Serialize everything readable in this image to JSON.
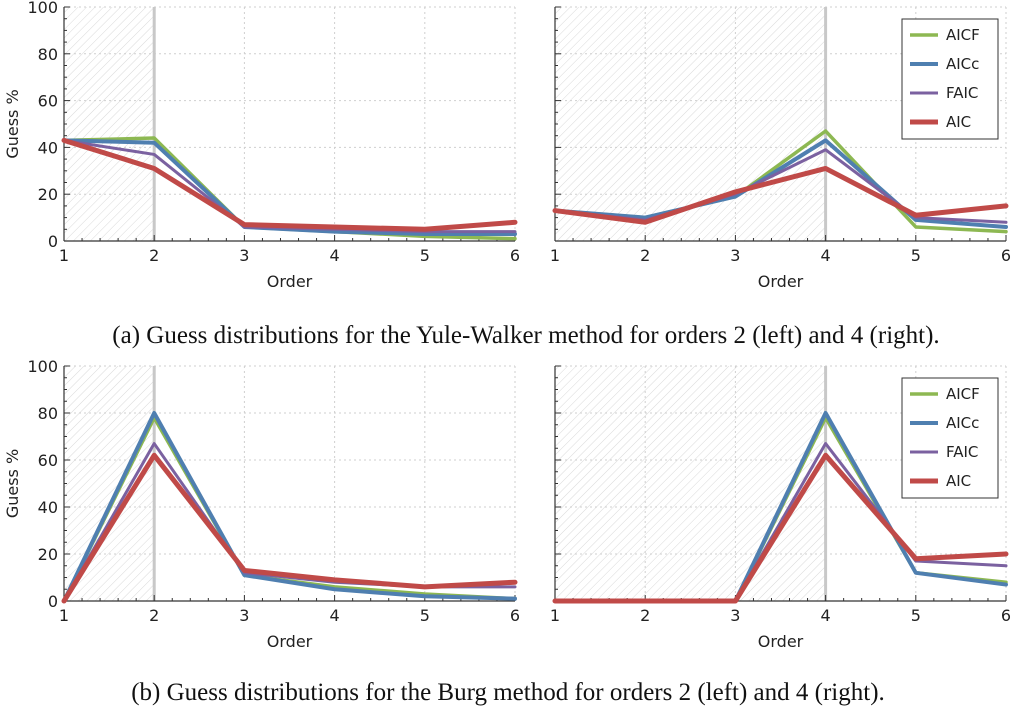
{
  "captions": {
    "a": "(a) Guess distributions for the Yule-Walker method for orders 2 (left) and 4 (right).",
    "b": "(b) Guess distributions for the Burg method for orders 2 (left) and 4 (right)."
  },
  "colors": {
    "AICF": "#8db852",
    "AICc": "#4f7fb0",
    "FAIC": "#7b61a0",
    "AIC": "#c04a48",
    "marker": "#c8c8c8",
    "grid": "#cfcfcf"
  },
  "chart_data": [
    {
      "type": "line",
      "panel": "a-left",
      "method": "Yule-Walker",
      "true_order": 2,
      "xlabel": "Order",
      "ylabel": "Guess %",
      "xlim": [
        1,
        6
      ],
      "ylim": [
        0,
        100
      ],
      "x": [
        1,
        2,
        3,
        4,
        5,
        6
      ],
      "xticks": [
        "1",
        "2",
        "3",
        "4",
        "5",
        "6"
      ],
      "yticks": [
        "0",
        "20",
        "40",
        "60",
        "80",
        "100"
      ],
      "legend": null,
      "series": [
        {
          "name": "AICF",
          "values": [
            43,
            44,
            6,
            4,
            2,
            1
          ]
        },
        {
          "name": "AICc",
          "values": [
            43,
            42,
            6,
            4,
            3,
            3
          ]
        },
        {
          "name": "FAIC",
          "values": [
            43,
            37,
            6,
            5,
            4,
            4
          ]
        },
        {
          "name": "AIC",
          "values": [
            43,
            31,
            7,
            6,
            5,
            8
          ]
        }
      ]
    },
    {
      "type": "line",
      "panel": "a-right",
      "method": "Yule-Walker",
      "true_order": 4,
      "xlabel": "Order",
      "ylabel": "",
      "xlim": [
        1,
        6
      ],
      "ylim": [
        0,
        100
      ],
      "x": [
        1,
        2,
        3,
        4,
        5,
        6
      ],
      "xticks": [
        "1",
        "2",
        "3",
        "4",
        "5",
        "6"
      ],
      "yticks": [],
      "legend": "top-right",
      "series": [
        {
          "name": "AICF",
          "values": [
            13,
            10,
            19,
            47,
            6,
            4
          ]
        },
        {
          "name": "AICc",
          "values": [
            13,
            10,
            19,
            43,
            9,
            6
          ]
        },
        {
          "name": "FAIC",
          "values": [
            13,
            9,
            20,
            39,
            10,
            8
          ]
        },
        {
          "name": "AIC",
          "values": [
            13,
            8,
            21,
            31,
            11,
            15
          ]
        }
      ]
    },
    {
      "type": "line",
      "panel": "b-left",
      "method": "Burg",
      "true_order": 2,
      "xlabel": "Order",
      "ylabel": "Guess %",
      "xlim": [
        1,
        6
      ],
      "ylim": [
        0,
        100
      ],
      "x": [
        1,
        2,
        3,
        4,
        5,
        6
      ],
      "xticks": [
        "1",
        "2",
        "3",
        "4",
        "5",
        "6"
      ],
      "yticks": [
        "0",
        "20",
        "40",
        "60",
        "80",
        "100"
      ],
      "legend": null,
      "series": [
        {
          "name": "AICF",
          "values": [
            0,
            78,
            11,
            6,
            3,
            1
          ]
        },
        {
          "name": "AICc",
          "values": [
            0,
            80,
            11,
            5,
            2,
            1
          ]
        },
        {
          "name": "FAIC",
          "values": [
            0,
            67,
            12,
            8,
            6,
            6
          ]
        },
        {
          "name": "AIC",
          "values": [
            0,
            62,
            13,
            9,
            6,
            8
          ]
        }
      ]
    },
    {
      "type": "line",
      "panel": "b-right",
      "method": "Burg",
      "true_order": 4,
      "xlabel": "Order",
      "ylabel": "",
      "xlim": [
        1,
        6
      ],
      "ylim": [
        0,
        100
      ],
      "x": [
        1,
        2,
        3,
        4,
        5,
        6
      ],
      "xticks": [
        "1",
        "2",
        "3",
        "4",
        "5",
        "6"
      ],
      "yticks": [],
      "legend": "top-right",
      "series": [
        {
          "name": "AICF",
          "values": [
            0,
            0,
            0,
            78,
            12,
            8
          ]
        },
        {
          "name": "AICc",
          "values": [
            0,
            0,
            0,
            80,
            12,
            7
          ]
        },
        {
          "name": "FAIC",
          "values": [
            0,
            0,
            0,
            67,
            17,
            15
          ]
        },
        {
          "name": "AIC",
          "values": [
            0,
            0,
            0,
            62,
            18,
            20
          ]
        }
      ]
    }
  ]
}
